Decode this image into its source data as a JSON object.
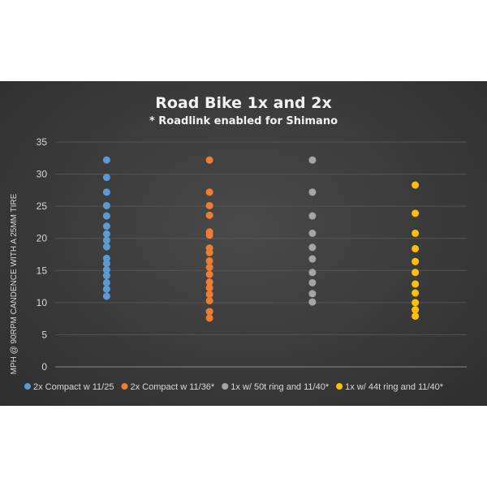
{
  "chart_data": {
    "type": "scatter",
    "title": "Road Bike 1x and 2x",
    "subtitle": "* Roadlink enabled for Shimano",
    "ylabel": "MPH @ 90RPM CANDENCE WITH A 25MM TIRE",
    "xlabel": "",
    "ylim": [
      0,
      35
    ],
    "yticks": [
      0,
      5,
      10,
      15,
      20,
      25,
      30,
      35
    ],
    "grid": true,
    "legend": "bottom",
    "series": [
      {
        "name": "2x Compact  w 11/25",
        "color": "#5b9bd5",
        "values": [
          32.2,
          29.5,
          27.2,
          25.1,
          23.5,
          21.9,
          20.7,
          19.7,
          18.7,
          16.9,
          16.1,
          15.1,
          14.2,
          13.1,
          12.1,
          11.0
        ]
      },
      {
        "name": "2x Compact w 11/36*",
        "color": "#ed7d31",
        "values": [
          32.2,
          27.2,
          25.1,
          23.6,
          21.0,
          20.5,
          18.5,
          17.8,
          16.5,
          15.5,
          14.4,
          13.2,
          12.3,
          11.3,
          10.3,
          8.6,
          7.6
        ]
      },
      {
        "name": "1x w/ 50t ring and 11/40*",
        "color": "#a5a5a5",
        "values": [
          32.2,
          27.2,
          23.5,
          20.8,
          18.6,
          16.8,
          14.7,
          13.1,
          11.4,
          10.1
        ]
      },
      {
        "name": "1x w/ 44t ring and 11/40*",
        "color": "#ffc000",
        "values": [
          28.3,
          23.9,
          20.8,
          18.4,
          16.4,
          14.7,
          12.9,
          11.5,
          10.0,
          8.9,
          7.9
        ]
      }
    ]
  }
}
